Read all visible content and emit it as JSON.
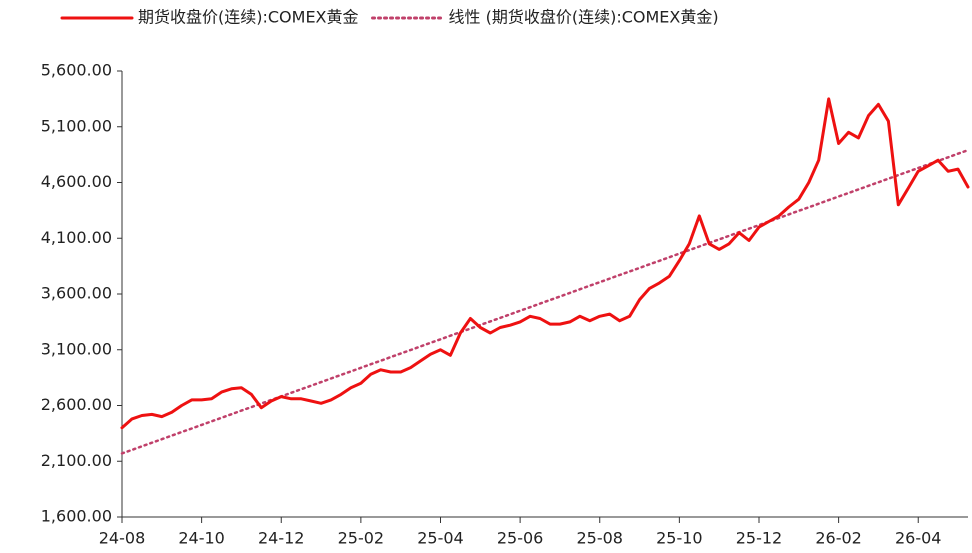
{
  "chart_data": {
    "type": "line",
    "legend": "top",
    "categories": [
      "24-08",
      null,
      null,
      null,
      null,
      null,
      null,
      null,
      "24-10",
      null,
      null,
      null,
      null,
      null,
      null,
      null,
      "24-12",
      null,
      null,
      null,
      null,
      null,
      null,
      null,
      "25-02",
      null,
      null,
      null,
      null,
      null,
      null,
      null,
      "25-04",
      null,
      null,
      null,
      null,
      null,
      null,
      null,
      "25-06",
      null,
      null,
      null,
      null,
      null,
      null,
      null,
      "25-08",
      null,
      null,
      null,
      null,
      null,
      null,
      null,
      "25-10",
      null,
      null,
      null,
      null,
      null,
      null,
      null,
      "25-12",
      null,
      null,
      null,
      null,
      null,
      null,
      null,
      "26-02",
      null,
      null,
      null,
      null,
      null,
      null,
      null,
      "26-04",
      null,
      null,
      null,
      null,
      null
    ],
    "series": [
      {
        "name": "期货收盘价(连续):COMEX黄金",
        "color": "#ee1111",
        "line_style": "solid",
        "values": [
          2400,
          2480,
          2510,
          2520,
          2500,
          2540,
          2600,
          2650,
          2650,
          2660,
          2720,
          2750,
          2760,
          2700,
          2580,
          2640,
          2680,
          2660,
          2660,
          2640,
          2620,
          2650,
          2700,
          2760,
          2800,
          2880,
          2920,
          2900,
          2900,
          2940,
          3000,
          3060,
          3100,
          3050,
          3250,
          3380,
          3300,
          3250,
          3300,
          3320,
          3350,
          3400,
          3380,
          3330,
          3330,
          3350,
          3400,
          3360,
          3400,
          3420,
          3360,
          3400,
          3550,
          3650,
          3700,
          3760,
          3900,
          4050,
          4300,
          4050,
          4000,
          4050,
          4150,
          4080,
          4200,
          4250,
          4300,
          4380,
          4450,
          4600,
          4800,
          5350,
          4950,
          5050,
          5000,
          5200,
          5300,
          5150,
          4400,
          4550,
          4700,
          4750,
          4800,
          4700,
          4720,
          4560
        ]
      },
      {
        "name": "线性 (期货收盘价(连续):COMEX黄金)",
        "color": "#c0406a",
        "line_style": "dotted",
        "values": [
          2170,
          2202,
          2234,
          2266,
          2298,
          2330,
          2362,
          2394,
          2426,
          2458,
          2490,
          2522,
          2554,
          2586,
          2618,
          2650,
          2682,
          2714,
          2746,
          2778,
          2810,
          2842,
          2874,
          2906,
          2938,
          2970,
          3002,
          3034,
          3066,
          3098,
          3130,
          3162,
          3194,
          3226,
          3258,
          3290,
          3322,
          3354,
          3386,
          3418,
          3450,
          3482,
          3514,
          3546,
          3578,
          3610,
          3642,
          3674,
          3706,
          3738,
          3770,
          3802,
          3834,
          3866,
          3898,
          3930,
          3962,
          3994,
          4026,
          4058,
          4090,
          4122,
          4154,
          4186,
          4218,
          4250,
          4282,
          4314,
          4346,
          4378,
          4410,
          4442,
          4474,
          4506,
          4538,
          4570,
          4602,
          4634,
          4666,
          4698,
          4730,
          4762,
          4794,
          4826,
          4858,
          4890
        ]
      }
    ],
    "ylim": [
      1600,
      5600
    ],
    "yticks": [
      {
        "value": 1600,
        "label": "1,600.00"
      },
      {
        "value": 2100,
        "label": "2,100.00"
      },
      {
        "value": 2600,
        "label": "2,600.00"
      },
      {
        "value": 3100,
        "label": "3,100.00"
      },
      {
        "value": 3600,
        "label": "3,600.00"
      },
      {
        "value": 4100,
        "label": "4,100.00"
      },
      {
        "value": 4600,
        "label": "4,600.00"
      },
      {
        "value": 5100,
        "label": "5,100.00"
      },
      {
        "value": 5600,
        "label": "5,600.00"
      }
    ],
    "grid": false
  }
}
